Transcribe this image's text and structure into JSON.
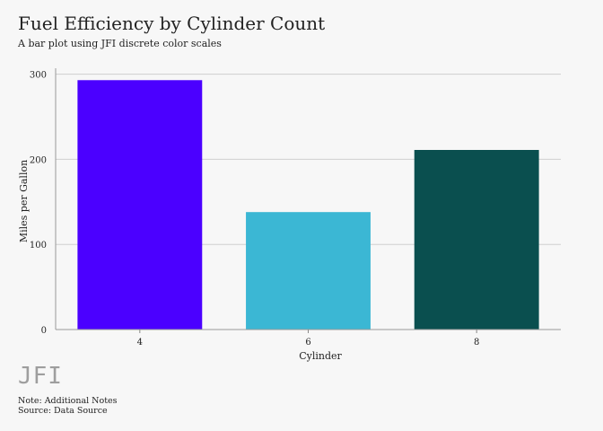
{
  "header": {
    "title": "Fuel Efficiency by Cylinder Count",
    "subtitle": "A bar plot using JFI discrete color scales"
  },
  "footer": {
    "logo_text": "JFI",
    "note": "Note: Additional Notes",
    "source": "Source: Data Source"
  },
  "chart_data": {
    "type": "bar",
    "title": "Fuel Efficiency by Cylinder Count",
    "subtitle": "A bar plot using JFI discrete color scales",
    "xlabel": "Cylinder",
    "ylabel": "Miles per Gallon",
    "categories": [
      "4",
      "6",
      "8"
    ],
    "values": [
      293,
      138,
      211
    ],
    "colors": [
      "#4b00ff",
      "#3bb7d4",
      "#0a4f4f"
    ],
    "ylim": [
      0,
      307
    ],
    "yticks": [
      0,
      100,
      200,
      300
    ],
    "grid": "horizontal",
    "legend": "none"
  }
}
